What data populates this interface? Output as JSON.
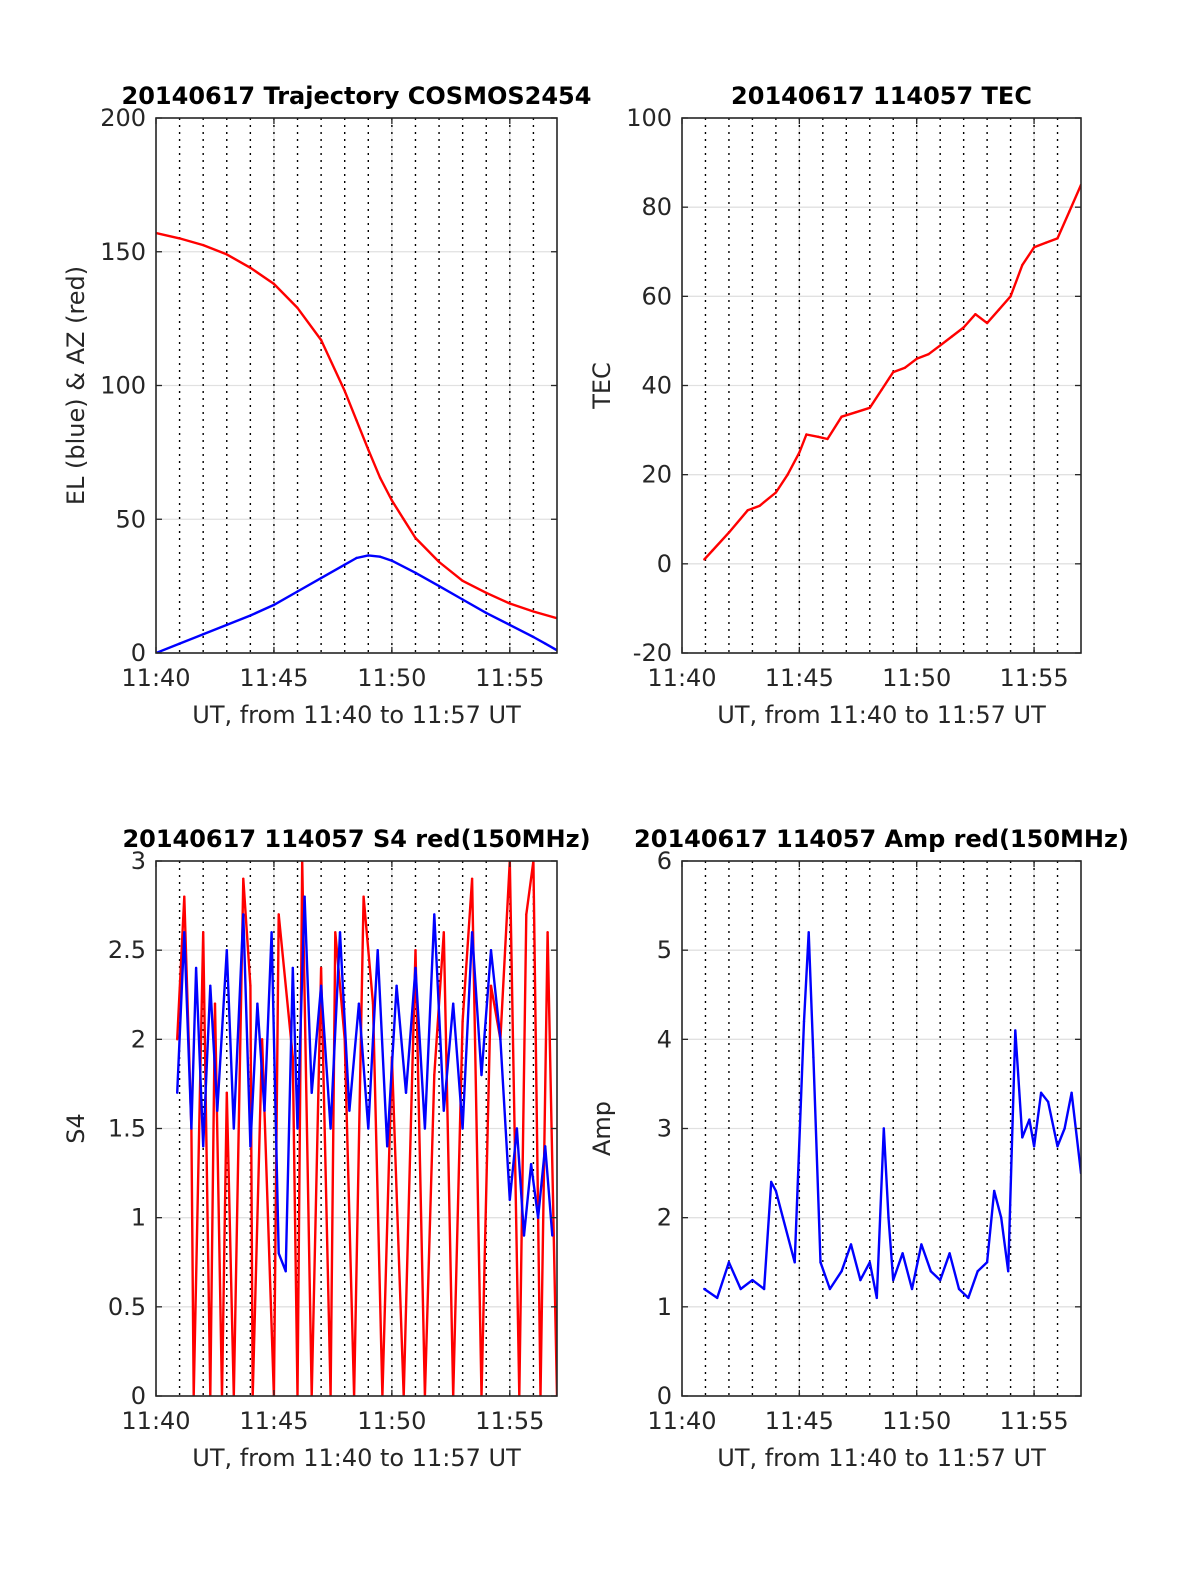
{
  "chart_data": [
    {
      "type": "line",
      "title": "20140617 Trajectory COSMOS2454",
      "xlabel": "UT, from 11:40 to 11:57 UT",
      "ylabel": "EL (blue) & AZ (red)",
      "xlim": [
        0,
        17
      ],
      "ylim": [
        0,
        200
      ],
      "xticks": [
        0,
        5,
        10,
        15
      ],
      "xticklabels": [
        "11:40",
        "11:45",
        "11:50",
        "11:55"
      ],
      "yticks": [
        0,
        50,
        100,
        150,
        200
      ],
      "yticklabels": [
        "0",
        "50",
        "100",
        "150",
        "200"
      ],
      "grid": true,
      "x_units": "minutes after 11:40 UT",
      "series": [
        {
          "color": "#ff0000",
          "x": [
            0.0,
            1.0,
            2.0,
            3.0,
            4.0,
            5.0,
            6.0,
            7.0,
            8.0,
            8.5,
            9.0,
            9.5,
            10.0,
            10.5,
            11.0,
            12.0,
            13.0,
            14.0,
            15.0,
            16.0,
            17.0
          ],
          "values": [
            157,
            155,
            152.5,
            149,
            144,
            138,
            129,
            117,
            98,
            87,
            76,
            65.5,
            57,
            50,
            43,
            34,
            27,
            22.5,
            18.5,
            15.5,
            13
          ]
        },
        {
          "color": "#0000ff",
          "x": [
            0.0,
            1.0,
            2.0,
            3.0,
            4.0,
            5.0,
            6.0,
            7.0,
            8.0,
            8.5,
            9.0,
            9.5,
            10.0,
            11.0,
            12.0,
            13.0,
            14.0,
            15.0,
            16.0,
            16.5,
            17.0
          ],
          "values": [
            0,
            3.5,
            7,
            10.5,
            14,
            18,
            23,
            28,
            33,
            35.5,
            36.5,
            36,
            34.5,
            30,
            25,
            20,
            15,
            10.5,
            6,
            3.5,
            1
          ]
        }
      ]
    },
    {
      "type": "line",
      "title": "20140617 114057 TEC",
      "xlabel": "UT, from 11:40 to 11:57 UT",
      "ylabel": "TEC",
      "xlim": [
        0,
        17
      ],
      "ylim": [
        -20,
        100
      ],
      "xticks": [
        0,
        5,
        10,
        15
      ],
      "xticklabels": [
        "11:40",
        "11:45",
        "11:50",
        "11:55"
      ],
      "yticks": [
        -20,
        0,
        20,
        40,
        60,
        80,
        100
      ],
      "yticklabels": [
        "-20",
        "0",
        "20",
        "40",
        "60",
        "80",
        "100"
      ],
      "grid": true,
      "x_units": "minutes after 11:40 UT",
      "series": [
        {
          "color": "#ff0000",
          "x": [
            0.95,
            1.3,
            2.0,
            2.8,
            3.3,
            4.0,
            4.5,
            5.0,
            5.3,
            5.8,
            6.2,
            6.8,
            7.4,
            8.0,
            8.5,
            9.0,
            9.5,
            10.0,
            10.5,
            11.0,
            11.5,
            12.0,
            12.5,
            13.0,
            13.5,
            14.0,
            14.5,
            15.0,
            15.5,
            16.0,
            16.5,
            17.0
          ],
          "values": [
            1,
            3,
            7,
            12,
            13,
            16,
            20,
            25,
            29,
            28.5,
            28,
            33,
            34,
            35,
            39,
            43,
            44,
            46,
            47,
            49,
            51,
            53,
            56,
            54,
            57,
            60,
            67,
            71,
            72,
            73,
            79,
            85
          ]
        }
      ]
    },
    {
      "type": "line",
      "title": "20140617 114057 S4 red(150MHz)",
      "xlabel": "UT, from 11:40 to 11:57 UT",
      "ylabel": "S4",
      "xlim": [
        0,
        17
      ],
      "ylim": [
        0,
        3
      ],
      "xticks": [
        0,
        5,
        10,
        15
      ],
      "xticklabels": [
        "11:40",
        "11:45",
        "11:50",
        "11:55"
      ],
      "yticks": [
        0,
        0.5,
        1,
        1.5,
        2,
        2.5,
        3
      ],
      "yticklabels": [
        "0",
        "0.5",
        "1",
        "1.5",
        "2",
        "2.5",
        "3"
      ],
      "grid": true,
      "x_units": "minutes after 11:40 UT",
      "series": [
        {
          "color": "#ff0000",
          "x": [
            0.9,
            1.2,
            1.5,
            1.6,
            2.0,
            2.3,
            2.5,
            2.8,
            3.0,
            3.3,
            3.7,
            4.0,
            4.1,
            4.5,
            5.0,
            5.2,
            5.8,
            6.0,
            6.2,
            6.6,
            7.0,
            7.4,
            7.6,
            8.0,
            8.4,
            8.8,
            9.2,
            9.6,
            10.0,
            10.5,
            11.0,
            11.4,
            11.8,
            12.2,
            12.6,
            13.0,
            13.4,
            13.8,
            14.2,
            14.6,
            15.0,
            15.4,
            15.7,
            16.0,
            16.3,
            16.6,
            17.0
          ],
          "values": [
            2.0,
            2.8,
            1.5,
            0.0,
            2.6,
            0.0,
            2.2,
            0.0,
            1.7,
            0.0,
            2.9,
            2.3,
            0.0,
            2.0,
            0.0,
            2.7,
            1.9,
            0.0,
            3.0,
            0.0,
            2.4,
            0.0,
            2.6,
            2.0,
            0.0,
            2.8,
            2.2,
            0.0,
            1.9,
            0.0,
            2.5,
            0.0,
            1.8,
            2.6,
            0.0,
            2.1,
            2.9,
            0.0,
            2.3,
            2.0,
            3.0,
            0.0,
            2.7,
            3.0,
            0.0,
            2.6,
            0.0
          ]
        },
        {
          "color": "#0000ff",
          "x": [
            0.9,
            1.2,
            1.5,
            1.7,
            2.0,
            2.3,
            2.6,
            3.0,
            3.3,
            3.7,
            4.0,
            4.3,
            4.6,
            4.9,
            5.2,
            5.5,
            5.8,
            6.0,
            6.3,
            6.6,
            7.0,
            7.4,
            7.8,
            8.2,
            8.6,
            9.0,
            9.4,
            9.8,
            10.2,
            10.6,
            11.0,
            11.4,
            11.8,
            12.2,
            12.6,
            13.0,
            13.4,
            13.8,
            14.2,
            14.6,
            15.0,
            15.3,
            15.6,
            15.9,
            16.2,
            16.5,
            16.8
          ],
          "values": [
            1.7,
            2.6,
            1.5,
            2.4,
            1.4,
            2.3,
            1.6,
            2.5,
            1.5,
            2.7,
            1.4,
            2.2,
            1.6,
            2.6,
            0.8,
            0.7,
            2.4,
            1.5,
            2.8,
            1.7,
            2.3,
            1.5,
            2.6,
            1.6,
            2.2,
            1.5,
            2.5,
            1.4,
            2.3,
            1.7,
            2.4,
            1.5,
            2.7,
            1.6,
            2.2,
            1.5,
            2.6,
            1.8,
            2.5,
            2.0,
            1.1,
            1.5,
            0.9,
            1.3,
            1.0,
            1.4,
            0.9
          ]
        }
      ]
    },
    {
      "type": "line",
      "title": "20140617 114057 Amp red(150MHz)",
      "xlabel": "UT, from 11:40 to 11:57 UT",
      "ylabel": "Amp",
      "xlim": [
        0,
        17
      ],
      "ylim": [
        0,
        6
      ],
      "xticks": [
        0,
        5,
        10,
        15
      ],
      "xticklabels": [
        "11:40",
        "11:45",
        "11:50",
        "11:55"
      ],
      "yticks": [
        0,
        1,
        2,
        3,
        4,
        5,
        6
      ],
      "yticklabels": [
        "0",
        "1",
        "2",
        "3",
        "4",
        "5",
        "6"
      ],
      "grid": true,
      "x_units": "minutes after 11:40 UT",
      "series": [
        {
          "color": "#0000ff",
          "x": [
            0.95,
            1.5,
            2.0,
            2.5,
            3.0,
            3.5,
            3.8,
            4.0,
            4.3,
            4.8,
            5.2,
            5.4,
            5.6,
            5.9,
            6.3,
            6.8,
            7.2,
            7.6,
            8.0,
            8.3,
            8.6,
            8.8,
            9.0,
            9.4,
            9.8,
            10.2,
            10.6,
            11.0,
            11.4,
            11.8,
            12.2,
            12.6,
            13.0,
            13.3,
            13.6,
            13.9,
            14.2,
            14.5,
            14.8,
            15.0,
            15.3,
            15.6,
            16.0,
            16.3,
            16.6,
            17.0
          ],
          "values": [
            1.2,
            1.1,
            1.5,
            1.2,
            1.3,
            1.2,
            2.4,
            2.3,
            2.0,
            1.5,
            4.2,
            5.2,
            3.8,
            1.5,
            1.2,
            1.4,
            1.7,
            1.3,
            1.5,
            1.1,
            3.0,
            2.0,
            1.3,
            1.6,
            1.2,
            1.7,
            1.4,
            1.3,
            1.6,
            1.2,
            1.1,
            1.4,
            1.5,
            2.3,
            2.0,
            1.4,
            4.1,
            2.9,
            3.1,
            2.8,
            3.4,
            3.3,
            2.8,
            3.0,
            3.4,
            2.5
          ]
        }
      ]
    }
  ]
}
